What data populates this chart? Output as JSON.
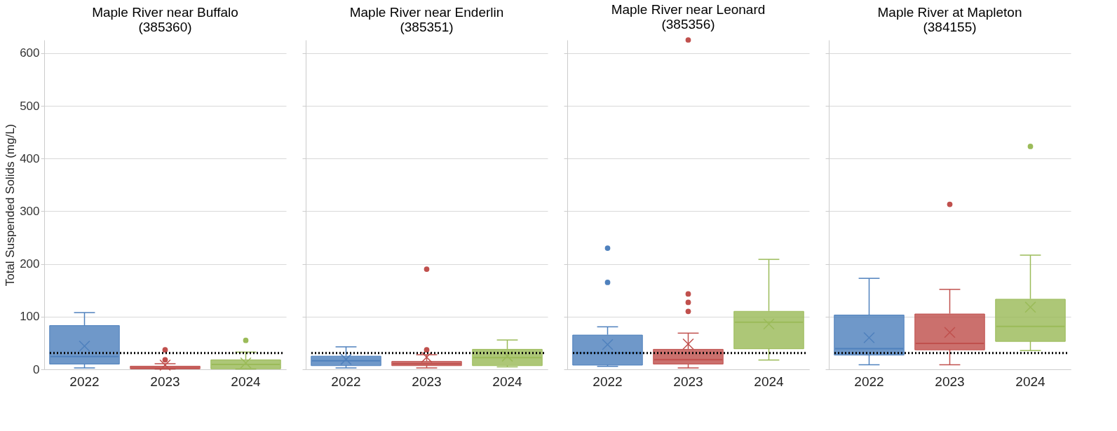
{
  "chart_data": [
    {
      "type": "box",
      "title": "Maple River near Buffalo\n(385360)",
      "ylabel": "Total Suspended Solids (mg/L)",
      "categories": [
        "2022",
        "2023",
        "2024"
      ],
      "colors": [
        "#4f81bd",
        "#c0504d",
        "#9bbb59"
      ],
      "boxes": [
        {
          "low": 2,
          "q1": 10,
          "median": 25,
          "q3": 83,
          "high": 107,
          "mean": 44
        },
        {
          "low": 0,
          "q1": 1,
          "median": 3,
          "q3": 6,
          "high": 10,
          "mean": 8,
          "outliers": [
            18,
            37
          ]
        },
        {
          "low": 0,
          "q1": 1,
          "median": 10,
          "q3": 18,
          "high": 32,
          "mean": 12,
          "outliers": [
            55
          ]
        }
      ],
      "ylim": [
        0,
        625
      ],
      "yticks": [
        0,
        100,
        200,
        300,
        400,
        500,
        600
      ],
      "grid": "y",
      "ref_lines": [
        {
          "axis": "y",
          "value": 31,
          "color": "#000000",
          "line_style": "dotted"
        }
      ]
    },
    {
      "type": "box",
      "title": "Maple River near Enderlin\n(385351)",
      "categories": [
        "2022",
        "2023",
        "2024"
      ],
      "colors": [
        "#4f81bd",
        "#c0504d",
        "#9bbb59"
      ],
      "boxes": [
        {
          "low": 2,
          "q1": 7,
          "median": 17,
          "q3": 25,
          "high": 42,
          "mean": 19
        },
        {
          "low": 2,
          "q1": 7,
          "median": 11,
          "q3": 15,
          "high": 27,
          "mean": 23,
          "outliers": [
            37,
            190
          ]
        },
        {
          "low": 4,
          "q1": 7,
          "median": 23,
          "q3": 38,
          "high": 55,
          "mean": 25
        }
      ],
      "ylim": [
        0,
        625
      ],
      "yticks": [
        0,
        100,
        200,
        300,
        400,
        500,
        600
      ],
      "grid": "y",
      "tick_labels": "x",
      "ref_lines": [
        {
          "axis": "y",
          "value": 31,
          "color": "#000000",
          "line_style": "dotted"
        }
      ]
    },
    {
      "type": "box",
      "title": "Maple River near Leonard\n(385356)",
      "categories": [
        "2022",
        "2023",
        "2024"
      ],
      "colors": [
        "#4f81bd",
        "#c0504d",
        "#9bbb59"
      ],
      "boxes": [
        {
          "low": 5,
          "q1": 8,
          "median": 32,
          "q3": 65,
          "high": 80,
          "mean": 47,
          "outliers": [
            165,
            230
          ]
        },
        {
          "low": 2,
          "q1": 10,
          "median": 19,
          "q3": 38,
          "high": 68,
          "mean": 48,
          "outliers": [
            110,
            127,
            143,
            625
          ]
        },
        {
          "low": 17,
          "q1": 39,
          "median": 90,
          "q3": 110,
          "high": 208,
          "mean": 86
        }
      ],
      "ylim": [
        0,
        625
      ],
      "yticks": [
        0,
        100,
        200,
        300,
        400,
        500,
        600
      ],
      "grid": "y",
      "tick_labels": "x",
      "ref_lines": [
        {
          "axis": "y",
          "value": 31,
          "color": "#000000",
          "line_style": "dotted"
        }
      ]
    },
    {
      "type": "box",
      "title": "Maple River at Mapleton\n(384155)",
      "categories": [
        "2022",
        "2023",
        "2024"
      ],
      "colors": [
        "#4f81bd",
        "#c0504d",
        "#9bbb59"
      ],
      "boxes": [
        {
          "low": 8,
          "q1": 27,
          "median": 40,
          "q3": 103,
          "high": 172,
          "mean": 60
        },
        {
          "low": 8,
          "q1": 37,
          "median": 50,
          "q3": 105,
          "high": 151,
          "mean": 70,
          "outliers": [
            313
          ]
        },
        {
          "low": 35,
          "q1": 53,
          "median": 82,
          "q3": 133,
          "high": 216,
          "mean": 118,
          "outliers": [
            423
          ]
        }
      ],
      "ylim": [
        0,
        625
      ],
      "yticks": [
        0,
        100,
        200,
        300,
        400,
        500,
        600
      ],
      "grid": "y",
      "tick_labels": "x",
      "ref_lines": [
        {
          "axis": "y",
          "value": 31,
          "color": "#000000",
          "line_style": "dotted"
        }
      ]
    }
  ]
}
